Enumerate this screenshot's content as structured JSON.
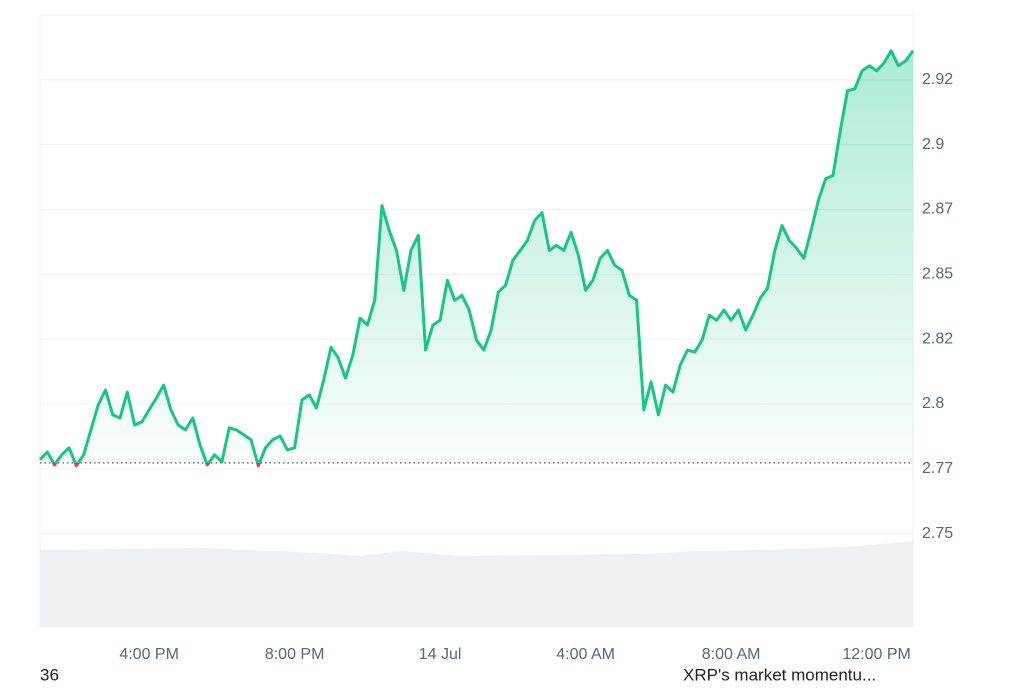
{
  "chart_data": {
    "type": "line",
    "values": [
      2.7785,
      2.7815,
      2.7765,
      2.7804,
      2.7831,
      2.7762,
      2.7804,
      2.79,
      2.7996,
      2.8054,
      2.7958,
      2.7946,
      2.8046,
      2.7919,
      2.7931,
      2.7977,
      2.8023,
      2.8073,
      2.7977,
      2.7919,
      2.79,
      2.7946,
      2.7842,
      2.7765,
      2.7804,
      2.7777,
      2.7908,
      2.79,
      2.7881,
      2.7862,
      2.7762,
      2.7831,
      2.7862,
      2.7877,
      2.7823,
      2.7831,
      2.8015,
      2.8035,
      2.7985,
      2.8092,
      2.8219,
      2.8177,
      2.81,
      2.8188,
      2.8331,
      2.8304,
      2.84,
      2.8765,
      2.8669,
      2.8592,
      2.8438,
      2.8592,
      2.865,
      2.8208,
      2.8304,
      2.8323,
      2.8477,
      2.84,
      2.8419,
      2.8362,
      2.8246,
      2.8208,
      2.8285,
      2.8431,
      2.8458,
      2.8554,
      2.8592,
      2.8631,
      2.8708,
      2.8738,
      2.8592,
      2.8612,
      2.8592,
      2.8662,
      2.8573,
      2.8438,
      2.8477,
      2.8562,
      2.8592,
      2.8535,
      2.8515,
      2.8419,
      2.84,
      2.7977,
      2.8085,
      2.7958,
      2.8073,
      2.8046,
      2.815,
      2.8208,
      2.82,
      2.8246,
      2.8342,
      2.8323,
      2.8362,
      2.8323,
      2.8362,
      2.8285,
      2.8342,
      2.8408,
      2.8446,
      2.8592,
      2.8688,
      2.8631,
      2.86,
      2.8562,
      2.8669,
      2.8785,
      2.8869,
      2.8881,
      2.9054,
      2.9208,
      2.9215,
      2.9285,
      2.9304,
      2.9285,
      2.9315,
      2.9362,
      2.9304,
      2.9323,
      2.9362
    ],
    "color": "#16c784",
    "down_color": "#ea3943",
    "baseline": 2.7773,
    "xlim": [
      0,
      120
    ],
    "xticks": [
      {
        "value": 15,
        "label": "4:00 PM"
      },
      {
        "value": 35,
        "label": "8:00 PM"
      },
      {
        "value": 55,
        "label": "14 Jul"
      },
      {
        "value": 75,
        "label": "4:00 AM"
      },
      {
        "value": 95,
        "label": "8:00 AM"
      },
      {
        "value": 115,
        "label": "12:00 PM"
      }
    ],
    "ylim": [
      2.714,
      2.95
    ],
    "yticks": [
      2.75,
      {
        "value": 2.775,
        "label": "2.77"
      },
      2.8,
      {
        "value": 2.825,
        "label": "2.82"
      },
      2.85,
      {
        "value": 2.875,
        "label": "2.87"
      },
      2.9,
      {
        "value": 2.925,
        "label": "2.92"
      }
    ],
    "grid": true
  },
  "footer": [
    "36",
    "XRP's market momentu..."
  ]
}
